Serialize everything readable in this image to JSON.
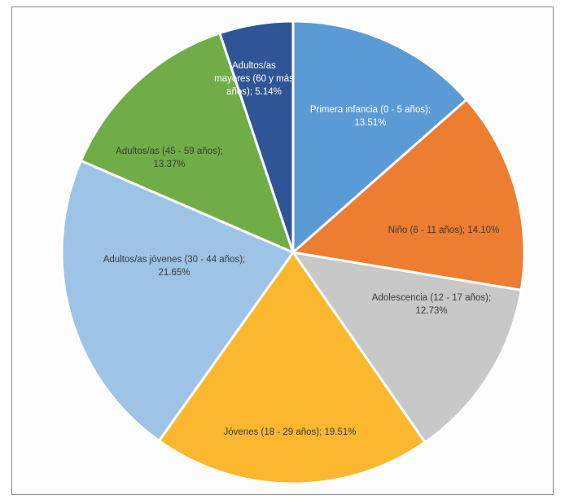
{
  "chart_data": {
    "type": "pie",
    "title": "",
    "legend": "none",
    "slices": [
      {
        "label": "Primera infancia (0 - 5 años)",
        "value": 13.51,
        "display": "Primera infancia (0 - 5 años);",
        "display_value": "13.51%",
        "color": "#5b9bd5",
        "text_color": "#ffffff"
      },
      {
        "label": "Niño (6 - 11 años)",
        "value": 14.1,
        "display": "Niño (6 - 11 años);",
        "display_value": "14.10%",
        "color": "#ed7d31",
        "text_color": "#3a3a3a"
      },
      {
        "label": "Adolescencia (12 - 17 años)",
        "value": 12.73,
        "display": "Adolescencia (12 - 17 años);",
        "display_value": "12.73%",
        "color": "#c8c8c8",
        "text_color": "#3a3a3a"
      },
      {
        "label": "Jóvenes (18 - 29 años)",
        "value": 19.51,
        "display": "Jóvenes (18 - 29 años);",
        "display_value": "19.51%",
        "color": "#fbb82f",
        "text_color": "#3a3a3a"
      },
      {
        "label": "Adultos/as jóvenes (30 - 44 años)",
        "value": 21.65,
        "display": "Adultos/as jóvenes (30 - 44 años);",
        "display_value": "21.65%",
        "color": "#9dc3e6",
        "text_color": "#3a3a3a"
      },
      {
        "label": "Adultos/as (45 - 59 años)",
        "value": 13.37,
        "display": "Adultos/as (45 - 59 años);",
        "display_value": "13.37%",
        "color": "#70ad47",
        "text_color": "#3a3a3a"
      },
      {
        "label": "Adultos/as mayores (60 y más años)",
        "value": 5.14,
        "display": "Adultos/as mayores (60 y más años);",
        "display_value": "5.14%",
        "color": "#2f5597",
        "text_color": "#ffffff"
      }
    ]
  }
}
